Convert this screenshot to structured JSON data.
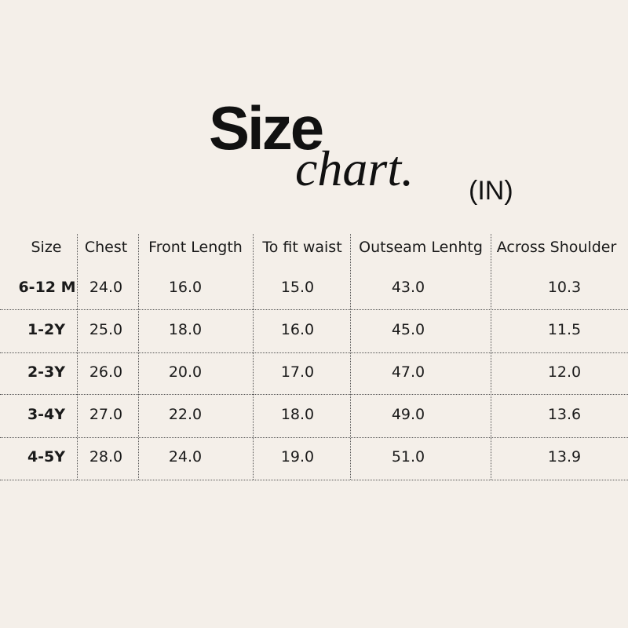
{
  "title": {
    "line1": "Size",
    "line2": "chart.",
    "unit": "(IN)"
  },
  "table": {
    "headers": [
      "Size",
      "Chest",
      "Front Length",
      "To fit waist",
      "Outseam Lenhtg",
      "Across Shoulder"
    ],
    "rows": [
      [
        "6-12 M",
        "24.0",
        "16.0",
        "15.0",
        "43.0",
        "10.3"
      ],
      [
        "1-2Y",
        "25.0",
        "18.0",
        "16.0",
        "45.0",
        "11.5"
      ],
      [
        "2-3Y",
        "26.0",
        "20.0",
        "17.0",
        "47.0",
        "12.0"
      ],
      [
        "3-4Y",
        "27.0",
        "22.0",
        "18.0",
        "49.0",
        "13.6"
      ],
      [
        "4-5Y",
        "28.0",
        "24.0",
        "19.0",
        "51.0",
        "13.9"
      ]
    ]
  }
}
